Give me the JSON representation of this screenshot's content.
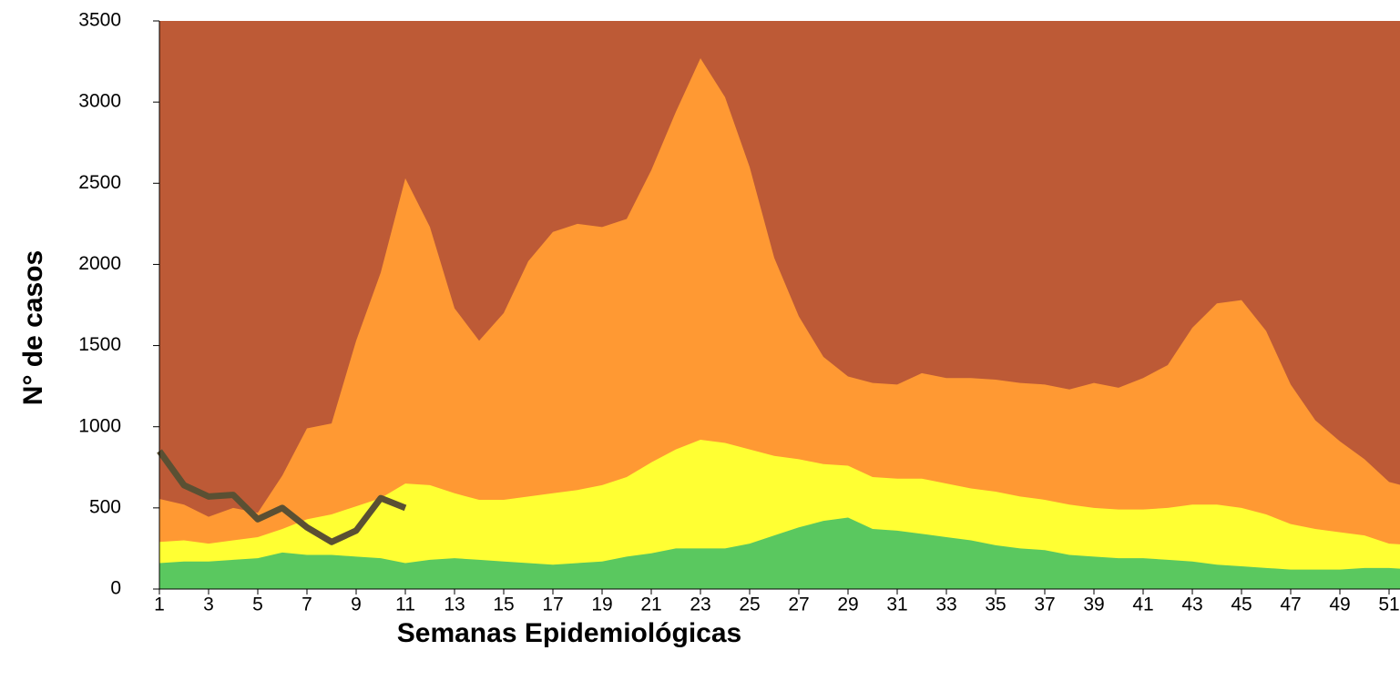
{
  "chart_data": {
    "type": "area",
    "y_label": "N° de casos",
    "x_label": "Semanas Epidemiológicas",
    "x": [
      1,
      2,
      3,
      4,
      5,
      6,
      7,
      8,
      9,
      10,
      11,
      12,
      13,
      14,
      15,
      16,
      17,
      18,
      19,
      20,
      21,
      22,
      23,
      24,
      25,
      26,
      27,
      28,
      29,
      30,
      31,
      32,
      33,
      34,
      35,
      36,
      37,
      38,
      39,
      40,
      41,
      42,
      43,
      44,
      45,
      46,
      47,
      48,
      49,
      50,
      51,
      52
    ],
    "xlim": [
      1,
      51.45
    ],
    "xticks": [
      1,
      3,
      5,
      7,
      9,
      11,
      13,
      15,
      17,
      19,
      21,
      23,
      25,
      27,
      29,
      31,
      33,
      35,
      37,
      39,
      41,
      43,
      45,
      47,
      49,
      51
    ],
    "ylim": [
      0,
      3500
    ],
    "yticks": [
      0,
      500,
      1000,
      1500,
      2000,
      2500,
      3000,
      3500
    ],
    "plot_background": "#bd5a36",
    "series": [
      {
        "color": "#ff9933",
        "values": [
          555,
          520,
          445,
          500,
          470,
          700,
          990,
          1020,
          1530,
          1950,
          2530,
          2230,
          1730,
          1530,
          1700,
          2020,
          2200,
          2250,
          2230,
          2280,
          2580,
          2940,
          3270,
          3030,
          2600,
          2040,
          1680,
          1430,
          1310,
          1270,
          1260,
          1330,
          1300,
          1300,
          1290,
          1270,
          1260,
          1230,
          1270,
          1240,
          1300,
          1380,
          1610,
          1760,
          1780,
          1590,
          1260,
          1040,
          910,
          800,
          660,
          620
        ]
      },
      {
        "color": "#ffff33",
        "values": [
          290,
          300,
          280,
          300,
          320,
          370,
          430,
          460,
          510,
          560,
          650,
          640,
          590,
          550,
          550,
          570,
          590,
          610,
          640,
          690,
          780,
          860,
          920,
          900,
          860,
          820,
          800,
          770,
          760,
          690,
          680,
          680,
          650,
          620,
          600,
          570,
          550,
          520,
          500,
          490,
          490,
          500,
          520,
          520,
          500,
          460,
          400,
          370,
          350,
          330,
          280,
          270
        ]
      },
      {
        "color": "#5ac85f",
        "values": [
          160,
          170,
          170,
          180,
          190,
          225,
          210,
          210,
          200,
          190,
          160,
          180,
          190,
          180,
          170,
          160,
          150,
          160,
          170,
          200,
          220,
          250,
          250,
          250,
          280,
          330,
          380,
          420,
          440,
          370,
          360,
          340,
          320,
          300,
          270,
          250,
          240,
          210,
          200,
          190,
          190,
          180,
          170,
          150,
          140,
          130,
          120,
          120,
          120,
          130,
          130,
          120
        ]
      },
      {
        "type": "line",
        "color": "#5a5033",
        "values": [
          850,
          640,
          570,
          580,
          430,
          500,
          380,
          290,
          360,
          560,
          500,
          null,
          null,
          null,
          null,
          null,
          null,
          null,
          null,
          null,
          null,
          null,
          null,
          null,
          null,
          null,
          null,
          null,
          null,
          null,
          null,
          null,
          null,
          null,
          null,
          null,
          null,
          null,
          null,
          null,
          null,
          null,
          null,
          null,
          null,
          null,
          null,
          null,
          null,
          null,
          null,
          null
        ]
      }
    ]
  }
}
